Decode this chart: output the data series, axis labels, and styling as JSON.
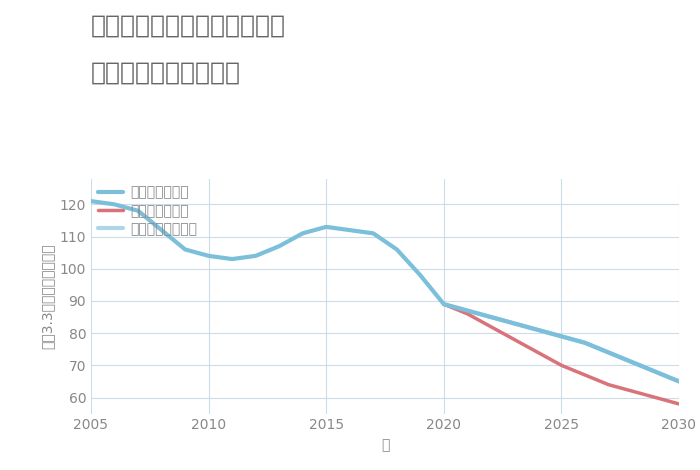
{
  "title_line1": "大阪府大阪市東住吉区桑津の",
  "title_line2": "中古戸建ての価格推移",
  "xlabel": "年",
  "ylabel": "坪（3.3㎡）単価（万円）",
  "xlim": [
    2005,
    2030
  ],
  "ylim": [
    55,
    128
  ],
  "yticks": [
    60,
    70,
    80,
    90,
    100,
    110,
    120
  ],
  "xticks": [
    2005,
    2010,
    2015,
    2020,
    2025,
    2030
  ],
  "good_scenario": {
    "label": "グッドシナリオ",
    "color": "#7bbfdb",
    "linewidth": 3.0,
    "x": [
      2005,
      2006,
      2007,
      2008,
      2009,
      2010,
      2011,
      2012,
      2013,
      2014,
      2015,
      2016,
      2017,
      2018,
      2019,
      2020,
      2021,
      2022,
      2023,
      2024,
      2025,
      2026,
      2027,
      2028,
      2029,
      2030
    ],
    "y": [
      121,
      120,
      118,
      112,
      106,
      104,
      103,
      104,
      107,
      111,
      113,
      112,
      111,
      106,
      98,
      89,
      87,
      85,
      83,
      81,
      79,
      77,
      74,
      71,
      68,
      65
    ]
  },
  "bad_scenario": {
    "label": "バッドシナリオ",
    "color": "#d9737a",
    "linewidth": 2.5,
    "x": [
      2020,
      2021,
      2022,
      2023,
      2024,
      2025,
      2026,
      2027,
      2028,
      2029,
      2030
    ],
    "y": [
      89,
      86,
      82,
      78,
      74,
      70,
      67,
      64,
      62,
      60,
      58
    ]
  },
  "normal_scenario": {
    "label": "ノーマルシナリオ",
    "color": "#aed6e8",
    "linewidth": 3.0,
    "x": [
      2020,
      2021,
      2022,
      2023,
      2024,
      2025,
      2026,
      2027,
      2028,
      2029,
      2030
    ],
    "y": [
      89,
      87,
      85,
      83,
      81,
      79,
      77,
      74,
      71,
      68,
      65
    ]
  },
  "background_color": "#ffffff",
  "grid_color": "#cddce8",
  "title_color": "#666666",
  "axis_color": "#888888",
  "title_fontsize": 18,
  "label_fontsize": 10,
  "tick_fontsize": 10
}
